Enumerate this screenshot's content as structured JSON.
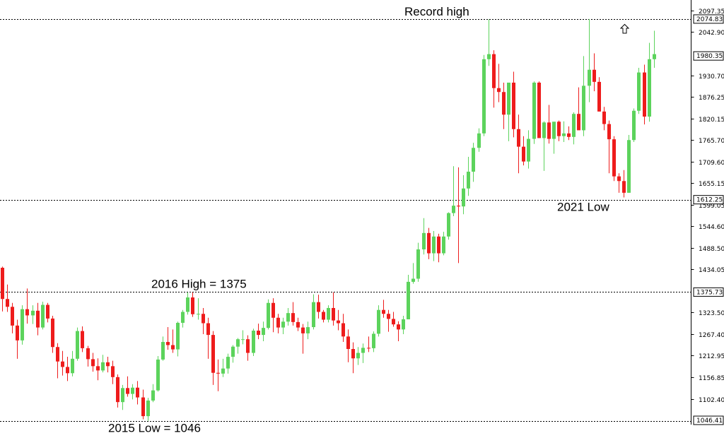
{
  "chart_data": {
    "type": "candlestick",
    "ylim": [
      1046.41,
      2097.35
    ],
    "y_ticks": [
      "2097.35",
      "2042.90",
      "1930.70",
      "1876.25",
      "1820.15",
      "1765.70",
      "1709.60",
      "1655.15",
      "1599.05",
      "1544.60",
      "1488.50",
      "1434.05",
      "1323.50",
      "1267.40",
      "1212.95",
      "1156.85",
      "1102.40"
    ],
    "price_boxes": [
      "2074.83",
      "1980.35",
      "1612.25",
      "1375.73",
      "1046.41"
    ],
    "levels": [
      {
        "value": 2074.83,
        "label": "2074.83",
        "style": "dotted"
      },
      {
        "value": 1612.25,
        "label": "1612.25",
        "style": "dotted"
      },
      {
        "value": 1375.73,
        "label": "1375.73",
        "style": "dotted"
      },
      {
        "value": 1046.41,
        "label": "1046.41",
        "style": "dotted"
      }
    ],
    "annotations": [
      {
        "text": "Record high",
        "anchor_price": 2074.83
      },
      {
        "text": "2016 High = 1375",
        "anchor_price": 1375.73
      },
      {
        "text": "2021 Low",
        "anchor_price": 1612.25
      },
      {
        "text": "2015 Low = 1046",
        "anchor_price": 1046.41
      }
    ],
    "colors": {
      "up": "#5cd35c",
      "down": "#ee1c1c",
      "level": "#000000",
      "axis": "#000000"
    },
    "candles": [
      [
        1438,
        1441,
        1326,
        1358
      ],
      [
        1358,
        1395,
        1325,
        1338
      ],
      [
        1338,
        1348,
        1270,
        1290
      ],
      [
        1290,
        1305,
        1205,
        1252
      ],
      [
        1252,
        1342,
        1241,
        1332
      ],
      [
        1332,
        1385,
        1295,
        1316
      ],
      [
        1316,
        1342,
        1294,
        1328
      ],
      [
        1328,
        1348,
        1265,
        1285
      ],
      [
        1285,
        1351,
        1280,
        1343
      ],
      [
        1343,
        1348,
        1298,
        1308
      ],
      [
        1308,
        1315,
        1220,
        1235
      ],
      [
        1235,
        1245,
        1155,
        1198
      ],
      [
        1198,
        1225,
        1162,
        1184
      ],
      [
        1184,
        1210,
        1148,
        1168
      ],
      [
        1168,
        1225,
        1160,
        1205
      ],
      [
        1205,
        1285,
        1200,
        1276
      ],
      [
        1276,
        1288,
        1222,
        1232
      ],
      [
        1232,
        1238,
        1185,
        1204
      ],
      [
        1204,
        1220,
        1172,
        1186
      ],
      [
        1186,
        1206,
        1150,
        1175
      ],
      [
        1175,
        1215,
        1170,
        1196
      ],
      [
        1196,
        1210,
        1170,
        1186
      ],
      [
        1186,
        1200,
        1140,
        1158
      ],
      [
        1158,
        1165,
        1080,
        1094
      ],
      [
        1094,
        1138,
        1074,
        1130
      ],
      [
        1130,
        1160,
        1108,
        1115
      ],
      [
        1115,
        1140,
        1101,
        1131
      ],
      [
        1131,
        1148,
        1088,
        1106
      ],
      [
        1106,
        1126,
        1050,
        1058
      ],
      [
        1058,
        1105,
        1046,
        1098
      ],
      [
        1098,
        1140,
        1094,
        1124
      ],
      [
        1124,
        1212,
        1121,
        1203
      ],
      [
        1203,
        1262,
        1200,
        1248
      ],
      [
        1248,
        1286,
        1228,
        1240
      ],
      [
        1240,
        1280,
        1220,
        1229
      ],
      [
        1229,
        1300,
        1211,
        1297
      ],
      [
        1297,
        1330,
        1285,
        1325
      ],
      [
        1325,
        1375,
        1318,
        1362
      ],
      [
        1362,
        1375,
        1312,
        1319
      ],
      [
        1319,
        1360,
        1305,
        1320
      ],
      [
        1320,
        1335,
        1268,
        1296
      ],
      [
        1296,
        1310,
        1205,
        1266
      ],
      [
        1266,
        1276,
        1138,
        1169
      ],
      [
        1169,
        1203,
        1122,
        1167
      ],
      [
        1167,
        1205,
        1158,
        1180
      ],
      [
        1180,
        1218,
        1167,
        1210
      ],
      [
        1210,
        1240,
        1195,
        1236
      ],
      [
        1236,
        1258,
        1218,
        1255
      ],
      [
        1255,
        1278,
        1242,
        1255
      ],
      [
        1255,
        1265,
        1200,
        1220
      ],
      [
        1220,
        1282,
        1212,
        1277
      ],
      [
        1277,
        1295,
        1255,
        1266
      ],
      [
        1266,
        1300,
        1250,
        1284
      ],
      [
        1284,
        1357,
        1280,
        1348
      ],
      [
        1348,
        1360,
        1273,
        1310
      ],
      [
        1310,
        1320,
        1270,
        1285
      ],
      [
        1285,
        1310,
        1268,
        1300
      ],
      [
        1300,
        1335,
        1290,
        1322
      ],
      [
        1322,
        1350,
        1290,
        1299
      ],
      [
        1299,
        1310,
        1276,
        1285
      ],
      [
        1285,
        1294,
        1218,
        1270
      ],
      [
        1270,
        1300,
        1255,
        1286
      ],
      [
        1286,
        1370,
        1280,
        1350
      ],
      [
        1350,
        1369,
        1308,
        1325
      ],
      [
        1325,
        1330,
        1298,
        1305
      ],
      [
        1305,
        1342,
        1298,
        1335
      ],
      [
        1335,
        1375,
        1290,
        1303
      ],
      [
        1303,
        1330,
        1278,
        1296
      ],
      [
        1296,
        1320,
        1248,
        1262
      ],
      [
        1262,
        1280,
        1196,
        1230
      ],
      [
        1230,
        1247,
        1168,
        1206
      ],
      [
        1206,
        1235,
        1189,
        1220
      ],
      [
        1220,
        1244,
        1194,
        1233
      ],
      [
        1233,
        1262,
        1222,
        1232
      ],
      [
        1232,
        1275,
        1222,
        1269
      ],
      [
        1269,
        1342,
        1262,
        1330
      ],
      [
        1330,
        1356,
        1310,
        1320
      ],
      [
        1320,
        1330,
        1274,
        1307
      ],
      [
        1307,
        1325,
        1287,
        1293
      ],
      [
        1293,
        1301,
        1250,
        1280
      ],
      [
        1280,
        1315,
        1268,
        1306
      ],
      [
        1306,
        1420,
        1306,
        1402
      ],
      [
        1402,
        1450,
        1397,
        1410
      ],
      [
        1410,
        1502,
        1402,
        1485
      ],
      [
        1485,
        1565,
        1472,
        1527
      ],
      [
        1527,
        1540,
        1460,
        1475
      ],
      [
        1475,
        1532,
        1455,
        1518
      ],
      [
        1518,
        1525,
        1452,
        1475
      ],
      [
        1475,
        1530,
        1470,
        1518
      ],
      [
        1518,
        1580,
        1510,
        1578
      ],
      [
        1578,
        1698,
        1570,
        1597
      ],
      [
        1597,
        1695,
        1450,
        1595
      ],
      [
        1595,
        1675,
        1575,
        1641
      ],
      [
        1641,
        1722,
        1622,
        1684
      ],
      [
        1684,
        1758,
        1658,
        1745
      ],
      [
        1745,
        1795,
        1735,
        1782
      ],
      [
        1782,
        1983,
        1775,
        1972
      ],
      [
        1972,
        2074,
        1955,
        1985
      ],
      [
        1985,
        1995,
        1848,
        1898
      ],
      [
        1898,
        1960,
        1862,
        1888
      ],
      [
        1888,
        1912,
        1793,
        1830
      ],
      [
        1830,
        1910,
        1762,
        1912
      ],
      [
        1912,
        1940,
        1772,
        1793
      ],
      [
        1793,
        1830,
        1680,
        1748
      ],
      [
        1748,
        1775,
        1700,
        1710
      ],
      [
        1710,
        1790,
        1692,
        1768
      ],
      [
        1768,
        1915,
        1755,
        1912
      ],
      [
        1912,
        1915,
        1780,
        1770
      ],
      [
        1770,
        1813,
        1686,
        1810
      ],
      [
        1810,
        1855,
        1756,
        1768
      ],
      [
        1768,
        1810,
        1730,
        1812
      ],
      [
        1812,
        1815,
        1762,
        1775
      ],
      [
        1775,
        1813,
        1760,
        1782
      ],
      [
        1782,
        1800,
        1765,
        1773
      ],
      [
        1773,
        1836,
        1754,
        1832
      ],
      [
        1832,
        1900,
        1800,
        1790
      ],
      [
        1790,
        1980,
        1775,
        1904
      ],
      [
        1904,
        2075,
        1862,
        1945
      ],
      [
        1945,
        1987,
        1890,
        1914
      ],
      [
        1914,
        1926,
        1838,
        1838
      ],
      [
        1838,
        1850,
        1790,
        1806
      ],
      [
        1806,
        1815,
        1680,
        1767
      ],
      [
        1767,
        1775,
        1660,
        1672
      ],
      [
        1672,
        1680,
        1630,
        1660
      ],
      [
        1660,
        1688,
        1618,
        1630
      ],
      [
        1630,
        1778,
        1630,
        1765
      ],
      [
        1765,
        1846,
        1760,
        1840
      ],
      [
        1840,
        1950,
        1832,
        1938
      ],
      [
        1938,
        1958,
        1805,
        1825
      ],
      [
        1825,
        2014,
        1812,
        1972
      ],
      [
        1972,
        2045,
        1950,
        1985
      ]
    ]
  }
}
